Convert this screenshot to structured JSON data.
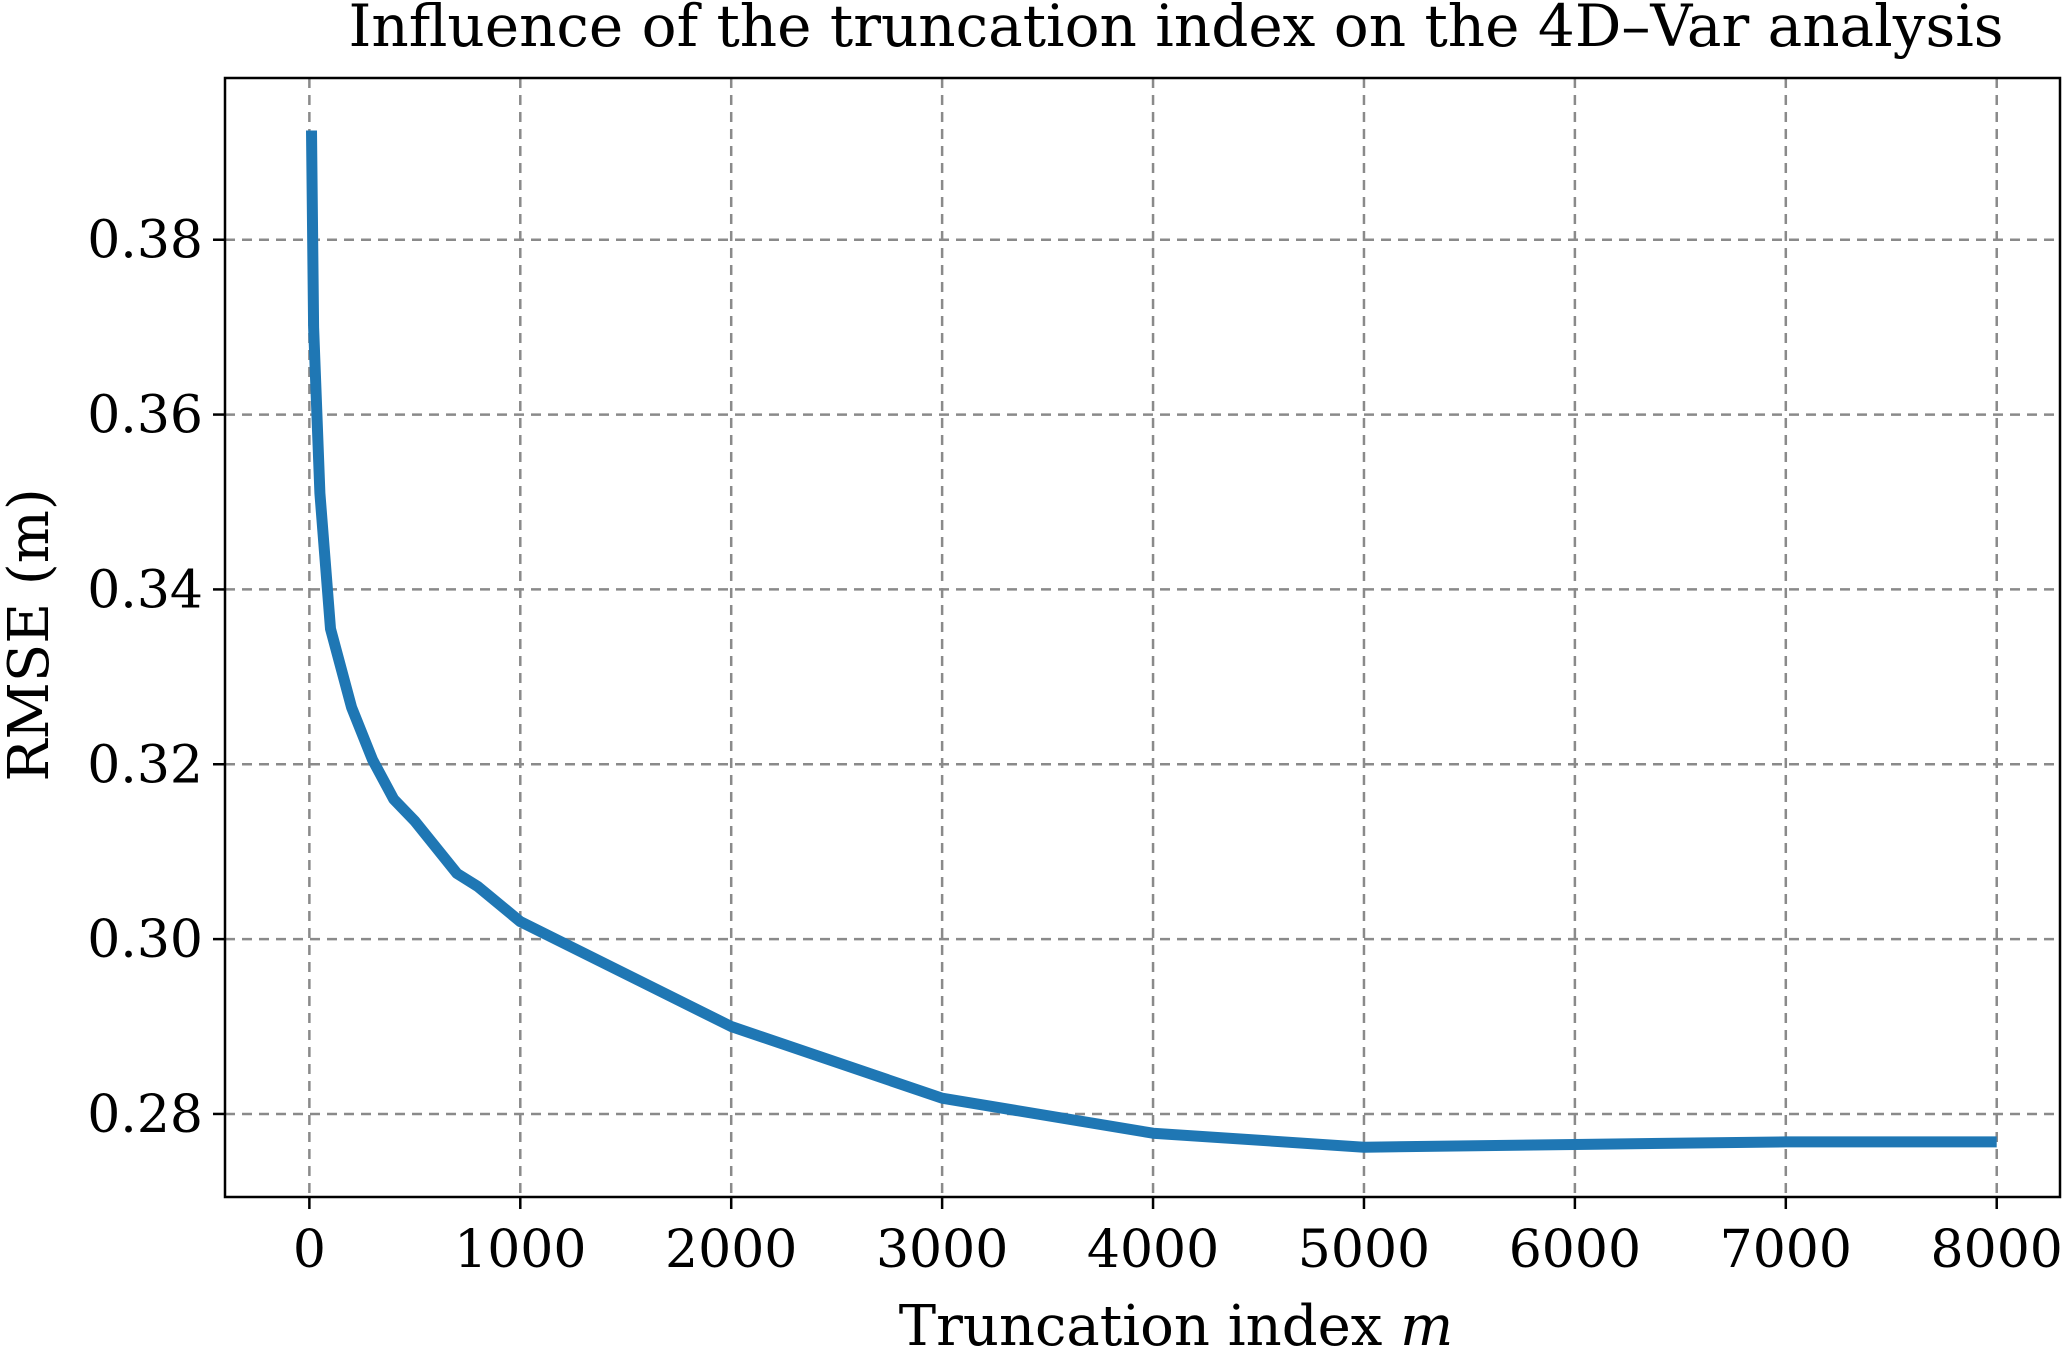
{
  "chart_data": {
    "type": "line",
    "title": "Influence of the truncation index on the 4D–Var analysis",
    "xlabel": "Truncation index ",
    "xlabel_var": "m",
    "ylabel": "RMSE (m)",
    "xlim": [
      -400,
      8300
    ],
    "ylim": [
      0.2705,
      0.3985
    ],
    "xticks": [
      0,
      1000,
      2000,
      3000,
      4000,
      5000,
      6000,
      7000,
      8000
    ],
    "xtick_labels": [
      "0",
      "1000",
      "2000",
      "3000",
      "4000",
      "5000",
      "6000",
      "7000",
      "8000"
    ],
    "yticks": [
      0.28,
      0.3,
      0.32,
      0.34,
      0.36,
      0.38
    ],
    "ytick_labels": [
      "0.28",
      "0.30",
      "0.32",
      "0.34",
      "0.36",
      "0.38"
    ],
    "grid": true,
    "legend": "none",
    "series": [
      {
        "color": "#1f77b4",
        "x": [
          10,
          20,
          50,
          100,
          200,
          300,
          400,
          500,
          700,
          800,
          1000,
          2000,
          3000,
          4000,
          5000,
          6000,
          7000,
          8000
        ],
        "y": [
          0.3925,
          0.37,
          0.351,
          0.3355,
          0.3265,
          0.3205,
          0.316,
          0.3135,
          0.3075,
          0.306,
          0.302,
          0.29,
          0.2818,
          0.2778,
          0.2762,
          0.2765,
          0.2768,
          0.2768
        ]
      }
    ]
  }
}
